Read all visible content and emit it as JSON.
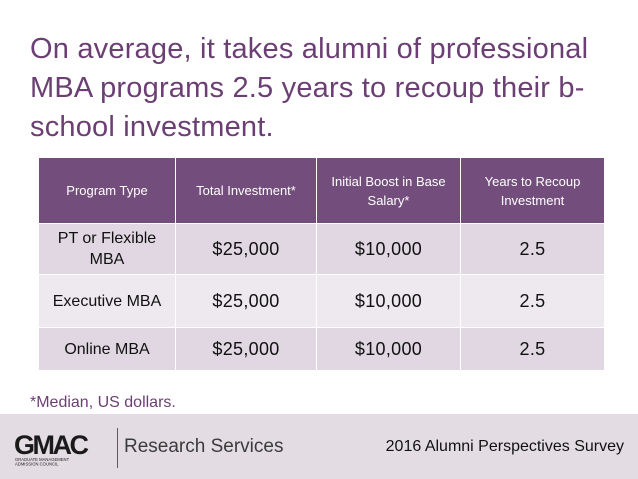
{
  "title": "On average, it takes alumni of professional MBA programs 2.5 years to recoup their b-school investment.",
  "table": {
    "headers": [
      "Program Type",
      "Total Investment*",
      "Initial Boost in Base Salary*",
      "Years to Recoup Investment"
    ],
    "rows": [
      [
        "PT or Flexible MBA",
        "$25,000",
        "$10,000",
        "2.5"
      ],
      [
        "Executive MBA",
        "$25,000",
        "$10,000",
        "2.5"
      ],
      [
        "Online MBA",
        "$25,000",
        "$10,000",
        "2.5"
      ]
    ]
  },
  "footnote": "*Median, US dollars.",
  "footer": {
    "logo_text": "GMAC",
    "logo_subtext": "GRADUATE MANAGEMENT ADMISSION COUNCIL",
    "brand": "Research Services",
    "survey": "2016 Alumni Perspectives Survey",
    "background_color": "#e3dde3"
  },
  "colors": {
    "accent": "#6b3f73",
    "header_bg": "#734d7b",
    "row_odd": "#e0d7e2",
    "row_even": "#eee9ef"
  }
}
